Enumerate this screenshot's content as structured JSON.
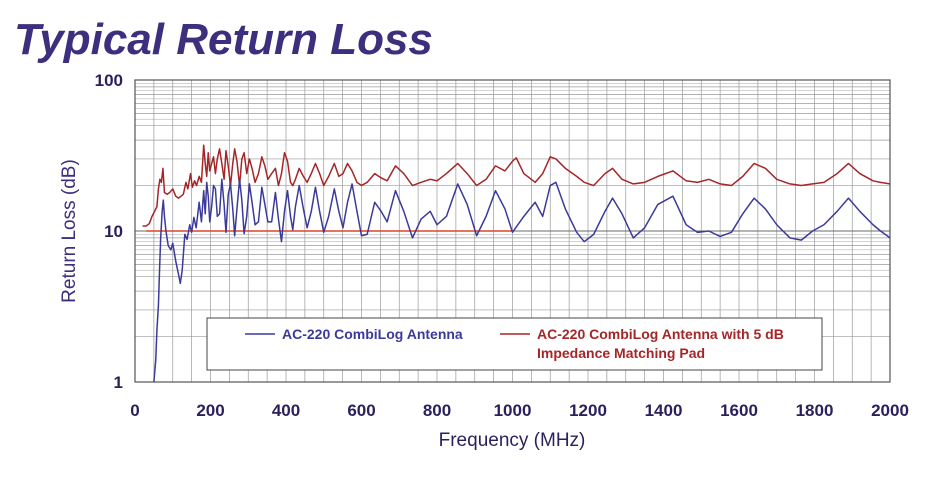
{
  "chart_data": {
    "type": "line",
    "title": "Typical Return Loss",
    "xlabel": "Frequency (MHz)",
    "ylabel": "Return Loss (dB)",
    "xlim": [
      0,
      2000
    ],
    "ylim": [
      1,
      100
    ],
    "yscale": "log",
    "grid": true,
    "x_ticks": [
      0,
      200,
      400,
      600,
      800,
      1000,
      1200,
      1400,
      1600,
      1800,
      2000
    ],
    "y_ticks": [
      1,
      10,
      100
    ],
    "legend_position": "bottom",
    "colors": {
      "title": "#3d2f7d",
      "axis_text": "#2b1f5c",
      "grid": "#9a9a9a",
      "reference": "#e0442a"
    },
    "reference_line": {
      "value": 10,
      "x_range": [
        30,
        1000
      ]
    },
    "series": [
      {
        "name": "AC-220 CombiLog Antenna",
        "color": "#3b3a9a",
        "points": [
          [
            50,
            1.0
          ],
          [
            55,
            1.4
          ],
          [
            58,
            2.2
          ],
          [
            62,
            3.2
          ],
          [
            65,
            5.5
          ],
          [
            68,
            9.0
          ],
          [
            72,
            13.5
          ],
          [
            75,
            16.0
          ],
          [
            78,
            12.5
          ],
          [
            82,
            10.0
          ],
          [
            88,
            8.0
          ],
          [
            95,
            7.5
          ],
          [
            100,
            8.3
          ],
          [
            108,
            6.3
          ],
          [
            115,
            5.2
          ],
          [
            120,
            4.5
          ],
          [
            125,
            5.5
          ],
          [
            132,
            9.5
          ],
          [
            138,
            8.8
          ],
          [
            145,
            11.0
          ],
          [
            150,
            9.8
          ],
          [
            156,
            12.3
          ],
          [
            162,
            10.5
          ],
          [
            170,
            15.5
          ],
          [
            176,
            11.5
          ],
          [
            182,
            18.5
          ],
          [
            186,
            13.0
          ],
          [
            190,
            21.0
          ],
          [
            194,
            17.0
          ],
          [
            198,
            11.5
          ],
          [
            203,
            14.5
          ],
          [
            208,
            20.0
          ],
          [
            213,
            19.0
          ],
          [
            218,
            12.5
          ],
          [
            224,
            13.0
          ],
          [
            230,
            22.0
          ],
          [
            236,
            15.0
          ],
          [
            241,
            9.8
          ],
          [
            247,
            17.5
          ],
          [
            253,
            20.5
          ],
          [
            259,
            14.0
          ],
          [
            264,
            9.3
          ],
          [
            270,
            14.0
          ],
          [
            277,
            22.0
          ],
          [
            283,
            16.0
          ],
          [
            289,
            9.6
          ],
          [
            296,
            12.5
          ],
          [
            303,
            20.5
          ],
          [
            310,
            15.5
          ],
          [
            318,
            11.0
          ],
          [
            327,
            11.5
          ],
          [
            336,
            19.5
          ],
          [
            344,
            15.0
          ],
          [
            352,
            11.5
          ],
          [
            362,
            11.5
          ],
          [
            372,
            18.0
          ],
          [
            380,
            12.0
          ],
          [
            388,
            8.5
          ],
          [
            396,
            13.5
          ],
          [
            404,
            18.5
          ],
          [
            412,
            12.5
          ],
          [
            418,
            10.2
          ],
          [
            425,
            14.5
          ],
          [
            435,
            20.0
          ],
          [
            446,
            14.0
          ],
          [
            456,
            10.5
          ],
          [
            467,
            13.5
          ],
          [
            478,
            19.5
          ],
          [
            489,
            13.5
          ],
          [
            500,
            9.8
          ],
          [
            513,
            12.5
          ],
          [
            528,
            19.0
          ],
          [
            540,
            13.5
          ],
          [
            551,
            10.5
          ],
          [
            563,
            15.5
          ],
          [
            575,
            20.5
          ],
          [
            588,
            13.5
          ],
          [
            600,
            9.3
          ],
          [
            615,
            9.5
          ],
          [
            635,
            15.5
          ],
          [
            652,
            13.5
          ],
          [
            668,
            11.5
          ],
          [
            690,
            18.5
          ],
          [
            712,
            13.5
          ],
          [
            735,
            9.0
          ],
          [
            758,
            12.0
          ],
          [
            782,
            13.5
          ],
          [
            800,
            11.0
          ],
          [
            825,
            12.5
          ],
          [
            855,
            20.5
          ],
          [
            880,
            15.0
          ],
          [
            905,
            9.3
          ],
          [
            930,
            12.5
          ],
          [
            955,
            18.5
          ],
          [
            980,
            14.0
          ],
          [
            1000,
            9.8
          ],
          [
            1030,
            12.5
          ],
          [
            1060,
            15.5
          ],
          [
            1080,
            12.5
          ],
          [
            1100,
            20.0
          ],
          [
            1115,
            21.0
          ],
          [
            1140,
            14.0
          ],
          [
            1170,
            9.8
          ],
          [
            1190,
            8.5
          ],
          [
            1215,
            9.5
          ],
          [
            1245,
            13.5
          ],
          [
            1265,
            16.5
          ],
          [
            1290,
            13.0
          ],
          [
            1320,
            9.0
          ],
          [
            1350,
            10.5
          ],
          [
            1385,
            15.0
          ],
          [
            1425,
            17.0
          ],
          [
            1460,
            11.0
          ],
          [
            1490,
            9.8
          ],
          [
            1520,
            10.0
          ],
          [
            1550,
            9.2
          ],
          [
            1580,
            9.8
          ],
          [
            1610,
            13.0
          ],
          [
            1640,
            16.5
          ],
          [
            1670,
            14.0
          ],
          [
            1700,
            11.0
          ],
          [
            1735,
            9.0
          ],
          [
            1765,
            8.7
          ],
          [
            1795,
            10.0
          ],
          [
            1825,
            11.0
          ],
          [
            1860,
            13.5
          ],
          [
            1890,
            16.5
          ],
          [
            1920,
            13.5
          ],
          [
            1955,
            11.0
          ],
          [
            1975,
            10.0
          ],
          [
            2000,
            9.0
          ]
        ]
      },
      {
        "name": "AC-220 CombiLog Antenna with 5 dB Impedance Matching Pad",
        "color": "#a52628",
        "points": [
          [
            20,
            10.8
          ],
          [
            30,
            10.8
          ],
          [
            38,
            11.2
          ],
          [
            45,
            12.5
          ],
          [
            52,
            13.5
          ],
          [
            58,
            14.5
          ],
          [
            62,
            19.0
          ],
          [
            66,
            22.0
          ],
          [
            70,
            21.0
          ],
          [
            74,
            26.0
          ],
          [
            78,
            18.0
          ],
          [
            85,
            17.5
          ],
          [
            92,
            18.0
          ],
          [
            100,
            19.0
          ],
          [
            108,
            17.0
          ],
          [
            115,
            16.5
          ],
          [
            122,
            17.0
          ],
          [
            128,
            17.5
          ],
          [
            135,
            21.0
          ],
          [
            140,
            19.0
          ],
          [
            147,
            24.0
          ],
          [
            152,
            19.5
          ],
          [
            158,
            21.5
          ],
          [
            163,
            20.0
          ],
          [
            170,
            23.0
          ],
          [
            176,
            21.0
          ],
          [
            182,
            37.0
          ],
          [
            186,
            28.0
          ],
          [
            190,
            23.0
          ],
          [
            194,
            33.0
          ],
          [
            198,
            25.0
          ],
          [
            203,
            28.0
          ],
          [
            208,
            31.0
          ],
          [
            213,
            24.0
          ],
          [
            218,
            30.0
          ],
          [
            224,
            35.0
          ],
          [
            230,
            28.0
          ],
          [
            236,
            22.0
          ],
          [
            241,
            34.0
          ],
          [
            247,
            27.0
          ],
          [
            253,
            20.0
          ],
          [
            259,
            28.0
          ],
          [
            264,
            35.0
          ],
          [
            270,
            29.0
          ],
          [
            277,
            20.0
          ],
          [
            283,
            30.0
          ],
          [
            289,
            33.0
          ],
          [
            296,
            24.0
          ],
          [
            303,
            30.0
          ],
          [
            310,
            26.0
          ],
          [
            318,
            21.0
          ],
          [
            327,
            24.0
          ],
          [
            336,
            31.0
          ],
          [
            344,
            27.0
          ],
          [
            352,
            22.0
          ],
          [
            362,
            24.0
          ],
          [
            372,
            26.0
          ],
          [
            380,
            20.0
          ],
          [
            388,
            24.0
          ],
          [
            396,
            33.0
          ],
          [
            404,
            29.0
          ],
          [
            412,
            21.0
          ],
          [
            418,
            20.0
          ],
          [
            425,
            22.0
          ],
          [
            435,
            26.0
          ],
          [
            446,
            23.0
          ],
          [
            456,
            21.0
          ],
          [
            467,
            24.0
          ],
          [
            478,
            28.0
          ],
          [
            489,
            24.0
          ],
          [
            500,
            20.0
          ],
          [
            513,
            23.0
          ],
          [
            528,
            28.0
          ],
          [
            540,
            23.0
          ],
          [
            551,
            24.0
          ],
          [
            563,
            28.0
          ],
          [
            575,
            25.0
          ],
          [
            588,
            21.0
          ],
          [
            600,
            20.0
          ],
          [
            615,
            21.0
          ],
          [
            635,
            24.0
          ],
          [
            652,
            22.5
          ],
          [
            668,
            21.5
          ],
          [
            690,
            27.0
          ],
          [
            712,
            24.0
          ],
          [
            735,
            20.0
          ],
          [
            758,
            21.0
          ],
          [
            782,
            22.0
          ],
          [
            800,
            21.5
          ],
          [
            825,
            24.0
          ],
          [
            855,
            28.0
          ],
          [
            880,
            24.0
          ],
          [
            905,
            20.0
          ],
          [
            930,
            22.0
          ],
          [
            955,
            27.0
          ],
          [
            980,
            25.0
          ],
          [
            1000,
            29.0
          ],
          [
            1010,
            30.5
          ],
          [
            1030,
            24.0
          ],
          [
            1060,
            21.0
          ],
          [
            1080,
            24.0
          ],
          [
            1100,
            31.0
          ],
          [
            1115,
            30.0
          ],
          [
            1140,
            26.0
          ],
          [
            1170,
            23.0
          ],
          [
            1190,
            21.0
          ],
          [
            1215,
            20.0
          ],
          [
            1245,
            24.0
          ],
          [
            1265,
            26.0
          ],
          [
            1290,
            22.0
          ],
          [
            1320,
            20.5
          ],
          [
            1350,
            21.0
          ],
          [
            1385,
            23.0
          ],
          [
            1425,
            25.0
          ],
          [
            1460,
            21.5
          ],
          [
            1490,
            21.0
          ],
          [
            1520,
            22.0
          ],
          [
            1550,
            20.5
          ],
          [
            1580,
            20.0
          ],
          [
            1610,
            23.0
          ],
          [
            1640,
            28.0
          ],
          [
            1670,
            26.0
          ],
          [
            1700,
            22.0
          ],
          [
            1735,
            20.5
          ],
          [
            1765,
            20.0
          ],
          [
            1795,
            20.5
          ],
          [
            1825,
            21.0
          ],
          [
            1860,
            24.0
          ],
          [
            1890,
            28.0
          ],
          [
            1920,
            24.0
          ],
          [
            1955,
            21.5
          ],
          [
            1975,
            21.0
          ],
          [
            2000,
            20.5
          ]
        ]
      }
    ]
  }
}
